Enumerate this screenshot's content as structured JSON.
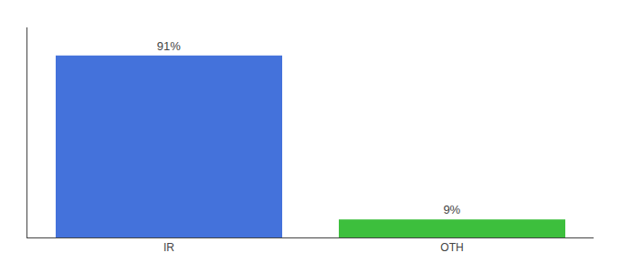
{
  "chart_data": {
    "type": "bar",
    "categories": [
      "IR",
      "OTH"
    ],
    "values": [
      91,
      9
    ],
    "colors": [
      "#4472db",
      "#3dbf3d"
    ],
    "value_labels": [
      "91%",
      "9%"
    ],
    "data_labels": true,
    "ylim": [
      0,
      105
    ],
    "tick_labels": "x",
    "grid": false
  }
}
